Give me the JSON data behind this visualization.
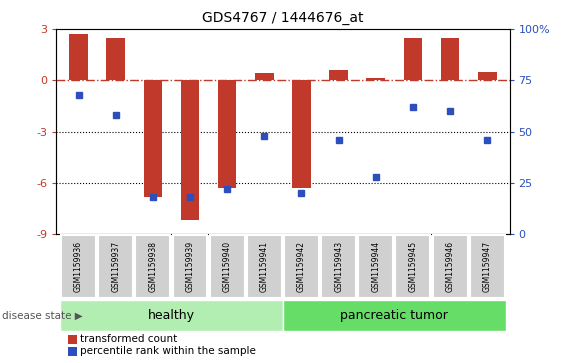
{
  "title": "GDS4767 / 1444676_at",
  "samples": [
    "GSM1159936",
    "GSM1159937",
    "GSM1159938",
    "GSM1159939",
    "GSM1159940",
    "GSM1159941",
    "GSM1159942",
    "GSM1159943",
    "GSM1159944",
    "GSM1159945",
    "GSM1159946",
    "GSM1159947"
  ],
  "transformed_count": [
    2.7,
    2.5,
    -6.8,
    -8.2,
    -6.3,
    0.4,
    -6.3,
    0.6,
    0.15,
    2.5,
    2.5,
    0.5
  ],
  "percentile_rank": [
    68,
    58,
    18,
    18,
    22,
    48,
    20,
    46,
    28,
    62,
    60,
    46
  ],
  "bar_color": "#c0392b",
  "dot_color": "#2c4fbd",
  "label_bg": "#d0d0d0",
  "healthy_group": [
    0,
    1,
    2,
    3,
    4,
    5
  ],
  "tumor_group": [
    6,
    7,
    8,
    9,
    10,
    11
  ],
  "healthy_label": "healthy",
  "tumor_label": "pancreatic tumor",
  "healthy_color": "#b2edb2",
  "tumor_color": "#66dd66",
  "disease_state_label": "disease state",
  "ylim_left": [
    -9,
    3
  ],
  "ylim_right": [
    0,
    100
  ],
  "yticks_left": [
    -9,
    -6,
    -3,
    0,
    3
  ],
  "yticks_right": [
    0,
    25,
    50,
    75,
    100
  ],
  "ytick_right_labels": [
    "0",
    "25",
    "50",
    "75",
    "100%"
  ],
  "dotted_lines": [
    -3,
    -6
  ],
  "legend_transformed": "transformed count",
  "legend_percentile": "percentile rank within the sample"
}
